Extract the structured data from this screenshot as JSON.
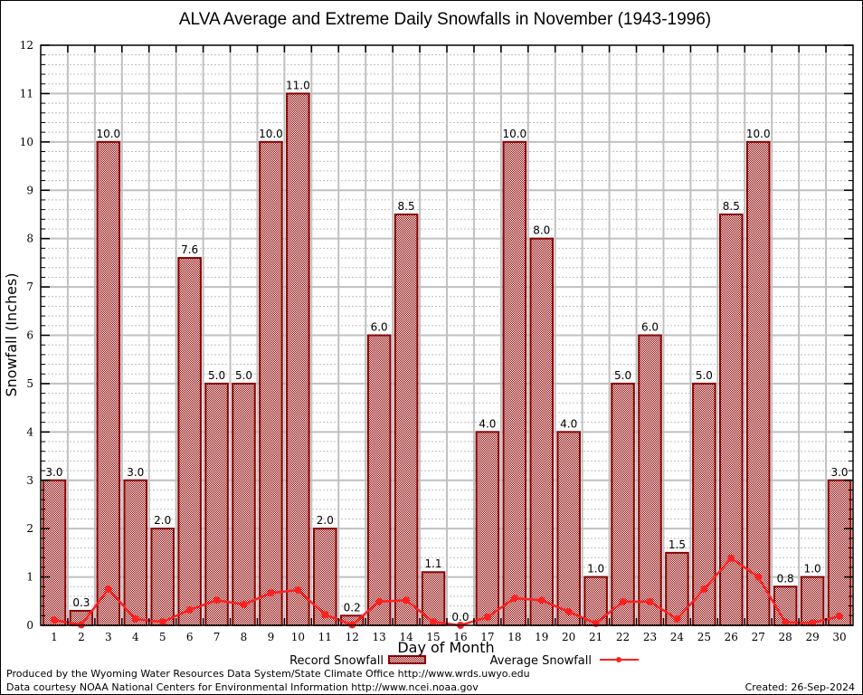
{
  "chart_data": {
    "type": "bar",
    "title": "ALVA Average and Extreme Daily Snowfalls in November (1943-1996)",
    "xlabel": "Day of Month",
    "ylabel": "Snowfall (Inches)",
    "ylim": [
      0,
      12
    ],
    "yticks": [
      "0",
      "1",
      "2",
      "3",
      "4",
      "5",
      "6",
      "7",
      "8",
      "9",
      "10",
      "11",
      "12"
    ],
    "grid": true,
    "categories": [
      "1",
      "2",
      "3",
      "4",
      "5",
      "6",
      "7",
      "8",
      "9",
      "10",
      "11",
      "12",
      "13",
      "14",
      "15",
      "16",
      "17",
      "18",
      "19",
      "20",
      "21",
      "22",
      "23",
      "24",
      "25",
      "26",
      "27",
      "28",
      "29",
      "30"
    ],
    "series": [
      {
        "name": "Record Snowfall",
        "type": "bar",
        "color": "#8b0000",
        "values": [
          3.0,
          0.3,
          10.0,
          3.0,
          2.0,
          7.6,
          5.0,
          5.0,
          10.0,
          11.0,
          2.0,
          0.2,
          6.0,
          8.5,
          1.1,
          0.0,
          4.0,
          10.0,
          8.0,
          4.0,
          1.0,
          5.0,
          6.0,
          1.5,
          5.0,
          8.5,
          10.0,
          0.8,
          1.0,
          3.0
        ],
        "labels": [
          "3.0",
          "0.3",
          "10.0",
          "3.0",
          "2.0",
          "7.6",
          "5.0",
          "5.0",
          "10.0",
          "11.0",
          "2.0",
          "0.2",
          "6.0",
          "8.5",
          "1.1",
          "0.0",
          "4.0",
          "10.0",
          "8.0",
          "4.0",
          "1.0",
          "5.0",
          "6.0",
          "1.5",
          "5.0",
          "8.5",
          "10.0",
          "0.8",
          "1.0",
          "3.0"
        ]
      },
      {
        "name": "Average Snowfall",
        "type": "line",
        "color": "#ff2020",
        "values": [
          0.11,
          0.01,
          0.75,
          0.13,
          0.07,
          0.32,
          0.52,
          0.43,
          0.67,
          0.73,
          0.22,
          0.01,
          0.49,
          0.52,
          0.07,
          0.0,
          0.17,
          0.56,
          0.52,
          0.28,
          0.04,
          0.49,
          0.49,
          0.13,
          0.75,
          1.39,
          1.0,
          0.06,
          0.05,
          0.19
        ]
      }
    ],
    "legend": {
      "placement": "bottom-center",
      "entries": [
        "Record Snowfall",
        "Average Snowfall"
      ]
    }
  },
  "footer": {
    "line1": "Produced by the Wyoming Water Resources Data System/State Climate Office http://www.wrds.uwyo.edu",
    "line2": "Data courtesy NOAA National Centers for Environmental Information http://www.ncei.noaa.gov",
    "created": "Created: 26-Sep-2024"
  }
}
